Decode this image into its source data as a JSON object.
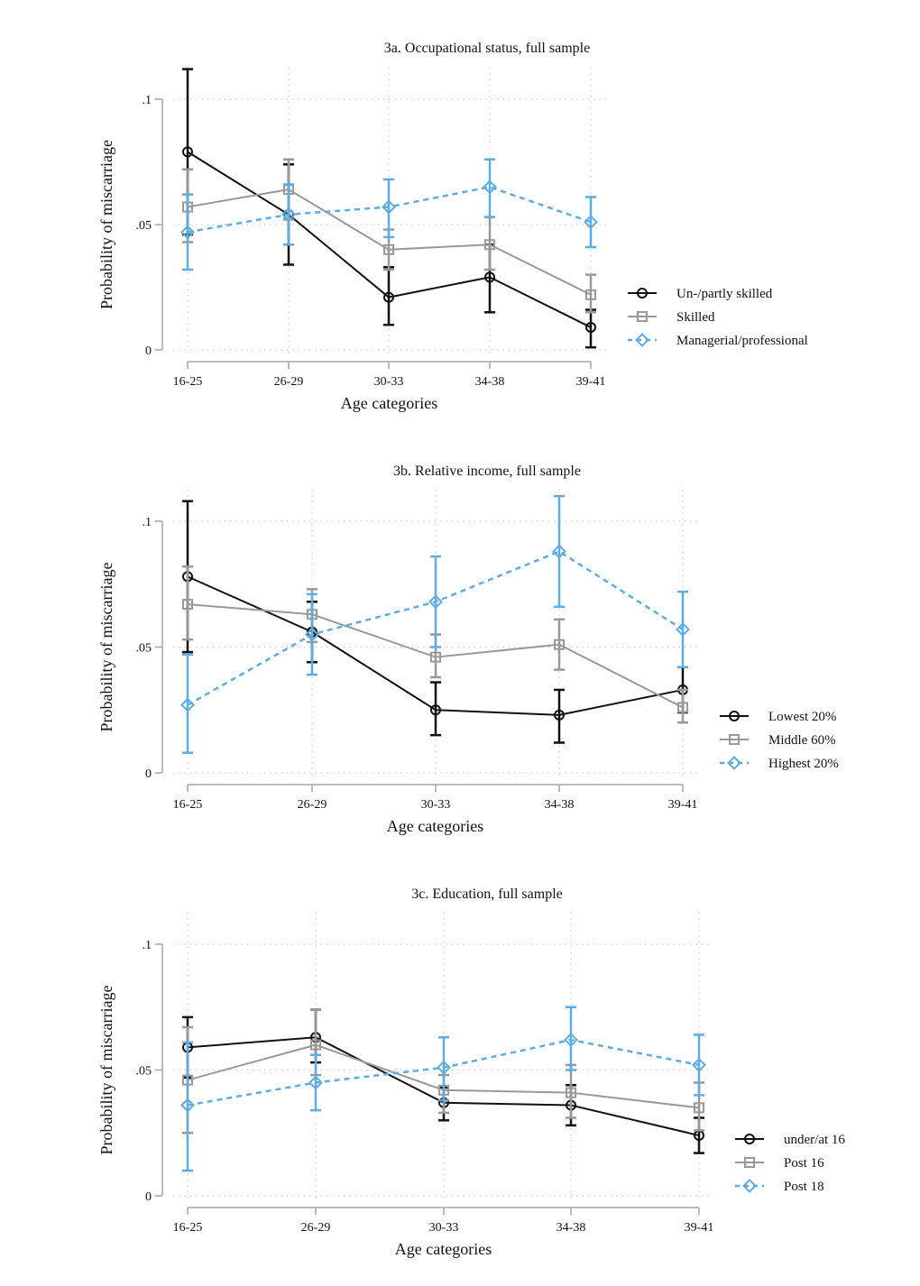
{
  "figure": {
    "y_axis_label": "Probability of miscarriage",
    "x_axis_label": "Age categories"
  },
  "colors": {
    "black": "#111111",
    "gray": "#999999",
    "blue": "#5DADE2",
    "axis": "#a6a6a6",
    "grid": "#c8c8c8"
  },
  "chart_data": [
    {
      "type": "line",
      "title": "3a. Occupational status, full sample",
      "xlabel": "Age categories",
      "ylabel": "Probability of miscarriage",
      "categories": [
        "16-25",
        "26-29",
        "30-33",
        "34-38",
        "39-41"
      ],
      "yticks": [
        {
          "value": 0,
          "label": "0"
        },
        {
          "value": 0.05,
          "label": ".05"
        },
        {
          "value": 0.1,
          "label": ".1"
        }
      ],
      "ylim": [
        0,
        0.1
      ],
      "grid": true,
      "legend_position": "right",
      "series": [
        {
          "name": "Un-/partly skilled",
          "style": "black",
          "marker": "circle",
          "dash": false,
          "values": [
            0.079,
            0.054,
            0.021,
            0.029,
            0.009
          ],
          "ci_low": [
            0.046,
            0.034,
            0.01,
            0.015,
            0.001
          ],
          "ci_high": [
            0.112,
            0.074,
            0.033,
            0.042,
            0.016
          ]
        },
        {
          "name": "Skilled",
          "style": "gray",
          "marker": "square",
          "dash": false,
          "values": [
            0.057,
            0.064,
            0.04,
            0.042,
            0.022
          ],
          "ci_low": [
            0.043,
            0.052,
            0.032,
            0.032,
            0.015
          ],
          "ci_high": [
            0.072,
            0.076,
            0.048,
            0.053,
            0.03
          ]
        },
        {
          "name": "Managerial/professional",
          "style": "blue",
          "marker": "diamond",
          "dash": true,
          "values": [
            0.047,
            0.054,
            0.057,
            0.065,
            0.051
          ],
          "ci_low": [
            0.032,
            0.042,
            0.045,
            0.053,
            0.041
          ],
          "ci_high": [
            0.062,
            0.066,
            0.068,
            0.076,
            0.061
          ]
        }
      ]
    },
    {
      "type": "line",
      "title": "3b. Relative income, full sample",
      "xlabel": "Age categories",
      "ylabel": "Probability of miscarriage",
      "categories": [
        "16-25",
        "26-29",
        "30-33",
        "34-38",
        "39-41"
      ],
      "yticks": [
        {
          "value": 0,
          "label": "0"
        },
        {
          "value": 0.05,
          "label": ".05"
        },
        {
          "value": 0.1,
          "label": ".1"
        }
      ],
      "ylim": [
        0,
        0.1
      ],
      "grid": true,
      "legend_position": "right",
      "series": [
        {
          "name": "Lowest 20%",
          "style": "black",
          "marker": "circle",
          "dash": false,
          "values": [
            0.078,
            0.056,
            0.025,
            0.023,
            0.033
          ],
          "ci_low": [
            0.048,
            0.044,
            0.015,
            0.012,
            0.024
          ],
          "ci_high": [
            0.108,
            0.068,
            0.036,
            0.033,
            0.042
          ]
        },
        {
          "name": "Middle 60%",
          "style": "gray",
          "marker": "square",
          "dash": false,
          "values": [
            0.067,
            0.063,
            0.046,
            0.051,
            0.026
          ],
          "ci_low": [
            0.053,
            0.052,
            0.038,
            0.041,
            0.02
          ],
          "ci_high": [
            0.082,
            0.073,
            0.055,
            0.061,
            0.033
          ]
        },
        {
          "name": "Highest 20%",
          "style": "blue",
          "marker": "diamond",
          "dash": true,
          "values": [
            0.027,
            0.055,
            0.068,
            0.088,
            0.057
          ],
          "ci_low": [
            0.008,
            0.039,
            0.05,
            0.066,
            0.042
          ],
          "ci_high": [
            0.047,
            0.071,
            0.086,
            0.11,
            0.072
          ]
        }
      ]
    },
    {
      "type": "line",
      "title": "3c. Education, full sample",
      "xlabel": "Age categories",
      "ylabel": "Probability of miscarriage",
      "categories": [
        "16-25",
        "26-29",
        "30-33",
        "34-38",
        "39-41"
      ],
      "yticks": [
        {
          "value": 0,
          "label": "0"
        },
        {
          "value": 0.05,
          "label": ".05"
        },
        {
          "value": 0.1,
          "label": ".1"
        }
      ],
      "ylim": [
        0,
        0.1
      ],
      "grid": true,
      "legend_position": "right",
      "series": [
        {
          "name": "under/at 16",
          "style": "black",
          "marker": "circle",
          "dash": false,
          "values": [
            0.059,
            0.063,
            0.037,
            0.036,
            0.024
          ],
          "ci_low": [
            0.047,
            0.053,
            0.03,
            0.028,
            0.017
          ],
          "ci_high": [
            0.071,
            0.074,
            0.043,
            0.044,
            0.031
          ]
        },
        {
          "name": "Post 16",
          "style": "gray",
          "marker": "square",
          "dash": false,
          "values": [
            0.046,
            0.06,
            0.042,
            0.041,
            0.035
          ],
          "ci_low": [
            0.025,
            0.048,
            0.033,
            0.031,
            0.026
          ],
          "ci_high": [
            0.067,
            0.074,
            0.048,
            0.052,
            0.045
          ]
        },
        {
          "name": "Post 18",
          "style": "blue",
          "marker": "diamond",
          "dash": true,
          "values": [
            0.036,
            0.045,
            0.051,
            0.062,
            0.052
          ],
          "ci_low": [
            0.01,
            0.034,
            0.038,
            0.05,
            0.04
          ],
          "ci_high": [
            0.061,
            0.056,
            0.063,
            0.075,
            0.064
          ]
        }
      ]
    }
  ]
}
